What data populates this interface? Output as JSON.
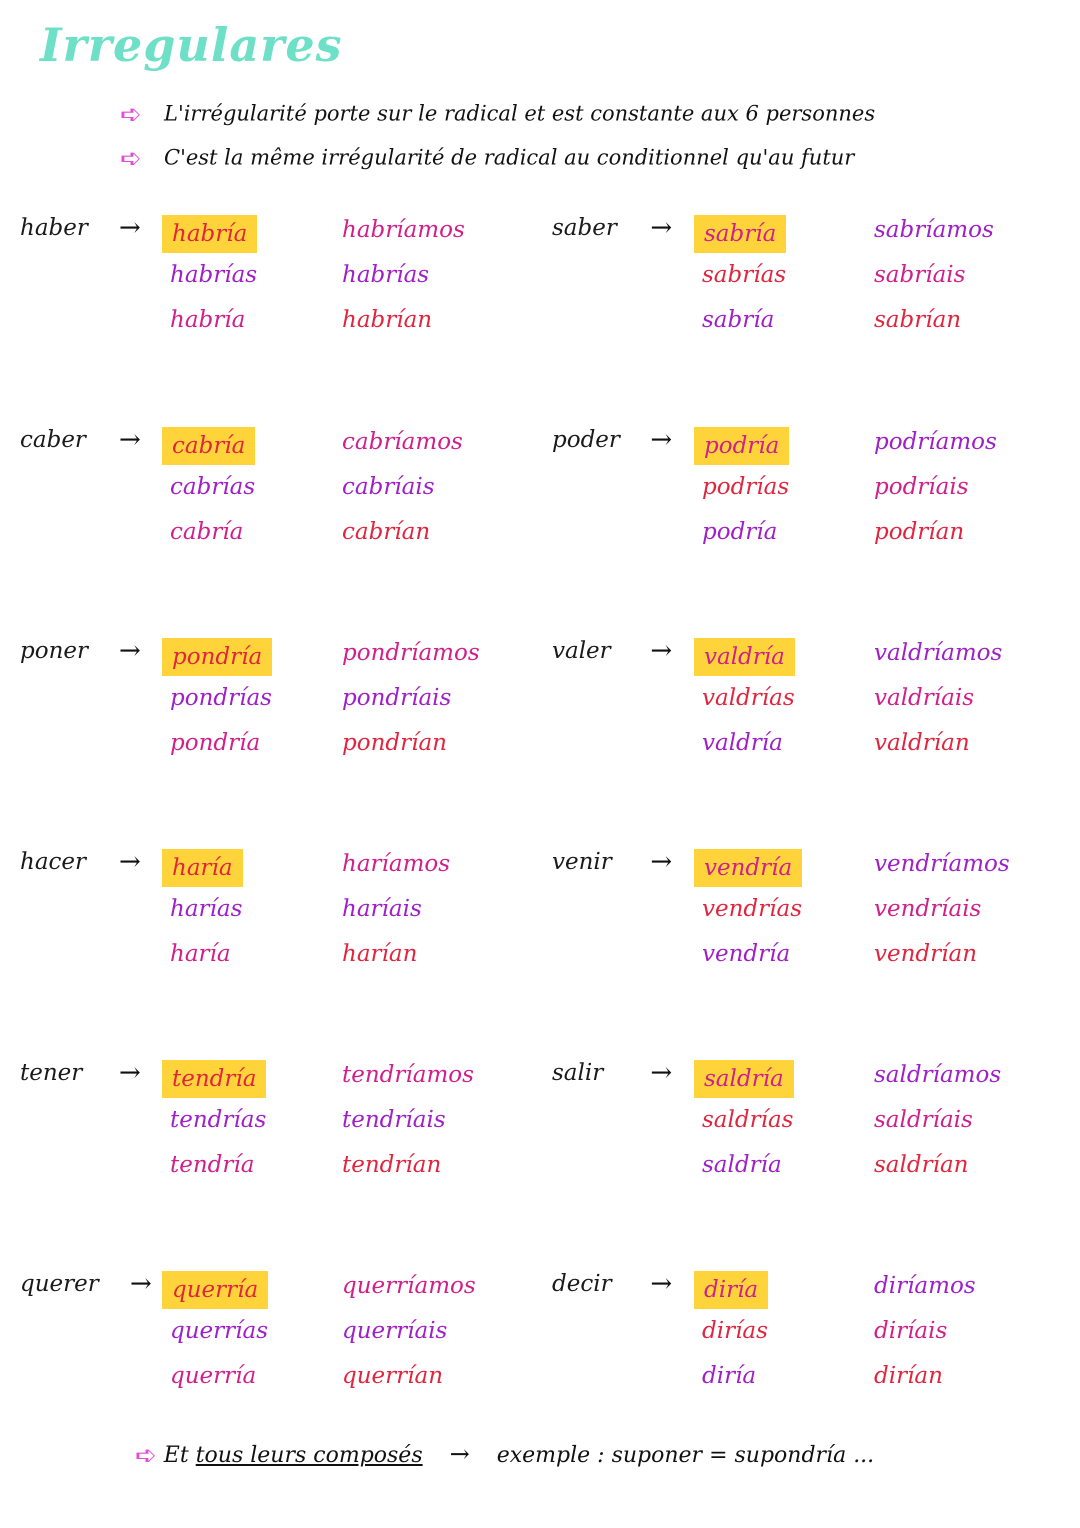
{
  "title": "Irregulares",
  "notes": [
    "L'irrégularité porte sur le radical et est constante aux 6 personnes",
    "C'est la même irrégularité de radical au conditionnel qu'au futur"
  ],
  "colors": {
    "highlight": "#ffd43b",
    "title": "#6fe0c8",
    "icon": "#e34bd9"
  },
  "verbs": [
    {
      "inf": "haber",
      "forms": [
        "habría",
        "habrías",
        "habría",
        "habríamos",
        "habrías",
        "habrían"
      ]
    },
    {
      "inf": "saber",
      "forms": [
        "sabría",
        "sabrías",
        "sabría",
        "sabríamos",
        "sabríais",
        "sabrían"
      ]
    },
    {
      "inf": "caber",
      "forms": [
        "cabría",
        "cabrías",
        "cabría",
        "cabríamos",
        "cabríais",
        "cabrían"
      ]
    },
    {
      "inf": "poder",
      "forms": [
        "podría",
        "podrías",
        "podría",
        "podríamos",
        "podríais",
        "podrían"
      ]
    },
    {
      "inf": "poner",
      "forms": [
        "pondría",
        "pondrías",
        "pondría",
        "pondríamos",
        "pondríais",
        "pondrían"
      ]
    },
    {
      "inf": "valer",
      "forms": [
        "valdría",
        "valdrías",
        "valdría",
        "valdríamos",
        "valdríais",
        "valdrían"
      ]
    },
    {
      "inf": "hacer",
      "forms": [
        "haría",
        "harías",
        "haría",
        "haríamos",
        "haríais",
        "harían"
      ]
    },
    {
      "inf": "venir",
      "forms": [
        "vendría",
        "vendrías",
        "vendría",
        "vendríamos",
        "vendríais",
        "vendrían"
      ]
    },
    {
      "inf": "tener",
      "forms": [
        "tendría",
        "tendrías",
        "tendría",
        "tendríamos",
        "tendríais",
        "tendrían"
      ]
    },
    {
      "inf": "salir",
      "forms": [
        "saldría",
        "saldrías",
        "saldría",
        "saldríamos",
        "saldríais",
        "saldrían"
      ]
    },
    {
      "inf": "querer",
      "forms": [
        "querría",
        "querrías",
        "querría",
        "querríamos",
        "querríais",
        "querrían"
      ]
    },
    {
      "inf": "decir",
      "forms": [
        "diría",
        "dirías",
        "diría",
        "diríamos",
        "diríais",
        "dirían"
      ]
    }
  ],
  "footer": {
    "text": "Et",
    "underlined": "tous leurs composés",
    "example": "exemple : suponer = supondría ..."
  }
}
